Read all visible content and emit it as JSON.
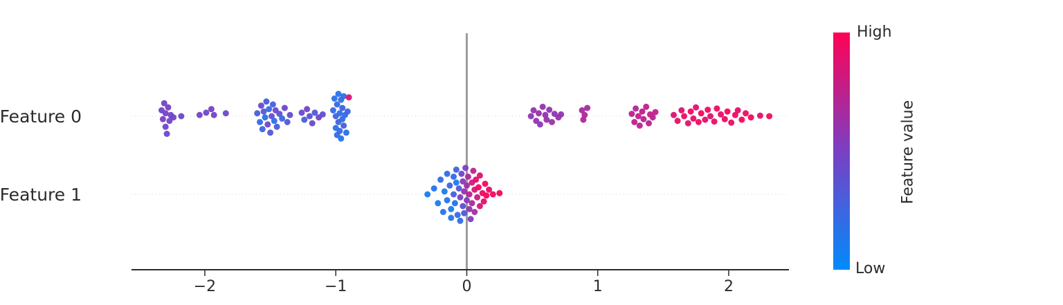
{
  "chart_data": {
    "type": "scatter",
    "variant": "shap-beeswarm-summary",
    "title": "",
    "xlabel": "",
    "xlim": [
      -2.56,
      2.46
    ],
    "xticks": {
      "values": [
        -2,
        -1,
        0,
        1,
        2
      ],
      "labels": [
        "−2",
        "−1",
        "0",
        "1",
        "2"
      ]
    },
    "zero_line_x": 0,
    "grid": "dotted-row-lines",
    "legend_position": "right-colorbar",
    "point_format": "[shap_value, vertical_jitter, normalized_feature_value_0_to_1]",
    "colorbar": {
      "high_label": "High",
      "low_label": "Low",
      "title": "Feature value"
    },
    "colors": {
      "low": "#008bfb",
      "mid": "#7b3fc4",
      "high": "#ff0254",
      "zero_line": "#9c9c9c",
      "axis": "#2b2b2b",
      "grid": "#d3d3d3",
      "text": "#2b2b2b"
    },
    "rows": [
      {
        "label": "Feature 0",
        "points": [
          [
            -2.33,
            0.1,
            0.46
          ],
          [
            -2.32,
            -0.05,
            0.5
          ],
          [
            -2.31,
            0.22,
            0.44
          ],
          [
            -2.3,
            0.05,
            0.48
          ],
          [
            -2.3,
            -0.18,
            0.46
          ],
          [
            -2.29,
            -0.3,
            0.44
          ],
          [
            -2.28,
            0.15,
            0.5
          ],
          [
            -2.27,
            -0.08,
            0.47
          ],
          [
            -2.26,
            0.02,
            0.45
          ],
          [
            -2.24,
            -0.02,
            0.49
          ],
          [
            -2.18,
            0.0,
            0.46
          ],
          [
            -2.04,
            0.02,
            0.47
          ],
          [
            -1.99,
            0.06,
            0.44
          ],
          [
            -1.95,
            0.12,
            0.5
          ],
          [
            -1.93,
            0.02,
            0.46
          ],
          [
            -1.84,
            0.05,
            0.44
          ],
          [
            -1.6,
            0.05,
            0.3
          ],
          [
            -1.58,
            -0.1,
            0.2
          ],
          [
            -1.57,
            0.18,
            0.42
          ],
          [
            -1.56,
            -0.22,
            0.25
          ],
          [
            -1.55,
            0.08,
            0.35
          ],
          [
            -1.54,
            -0.02,
            0.18
          ],
          [
            -1.53,
            0.25,
            0.3
          ],
          [
            -1.52,
            -0.14,
            0.45
          ],
          [
            -1.51,
            0.12,
            0.22
          ],
          [
            -1.5,
            -0.28,
            0.33
          ],
          [
            -1.49,
            0.0,
            0.4
          ],
          [
            -1.48,
            0.2,
            0.27
          ],
          [
            -1.47,
            -0.08,
            0.18
          ],
          [
            -1.46,
            0.1,
            0.45
          ],
          [
            -1.45,
            -0.18,
            0.3
          ],
          [
            -1.43,
            0.04,
            0.38
          ],
          [
            -1.41,
            -0.04,
            0.25
          ],
          [
            -1.39,
            0.14,
            0.44
          ],
          [
            -1.37,
            -0.1,
            0.35
          ],
          [
            -1.35,
            0.02,
            0.42
          ],
          [
            -1.26,
            0.06,
            0.42
          ],
          [
            -1.24,
            -0.06,
            0.3
          ],
          [
            -1.22,
            0.12,
            0.48
          ],
          [
            -1.2,
            0.0,
            0.38
          ],
          [
            -1.18,
            -0.12,
            0.44
          ],
          [
            -1.16,
            0.06,
            0.32
          ],
          [
            -1.13,
            -0.02,
            0.46
          ],
          [
            -1.1,
            0.03,
            0.4
          ],
          [
            -1.02,
            0.1,
            0.22
          ],
          [
            -1.01,
            0.3,
            0.18
          ],
          [
            -1.0,
            0.0,
            0.25
          ],
          [
            -1.0,
            -0.2,
            0.15
          ],
          [
            -0.99,
            0.2,
            0.2
          ],
          [
            -0.99,
            -0.32,
            0.22
          ],
          [
            -0.98,
            0.38,
            0.16
          ],
          [
            -0.98,
            -0.1,
            0.28
          ],
          [
            -0.97,
            0.05,
            0.18
          ],
          [
            -0.97,
            -0.25,
            0.24
          ],
          [
            -0.96,
            0.28,
            0.2
          ],
          [
            -0.96,
            -0.38,
            0.15
          ],
          [
            -0.95,
            0.14,
            0.26
          ],
          [
            -0.95,
            -0.05,
            0.2
          ],
          [
            -0.94,
            0.34,
            0.17
          ],
          [
            -0.94,
            -0.16,
            0.28
          ],
          [
            -0.93,
            0.02,
            0.22
          ],
          [
            -0.92,
            -0.28,
            0.18
          ],
          [
            -0.91,
            0.08,
            0.25
          ],
          [
            -0.9,
            0.32,
            0.85
          ],
          [
            0.49,
            0.0,
            0.56
          ],
          [
            0.51,
            0.1,
            0.6
          ],
          [
            0.53,
            -0.08,
            0.58
          ],
          [
            0.55,
            0.05,
            0.62
          ],
          [
            0.56,
            -0.14,
            0.56
          ],
          [
            0.58,
            0.16,
            0.6
          ],
          [
            0.6,
            0.02,
            0.58
          ],
          [
            0.61,
            -0.06,
            0.63
          ],
          [
            0.63,
            0.11,
            0.59
          ],
          [
            0.65,
            -0.1,
            0.61
          ],
          [
            0.67,
            0.04,
            0.57
          ],
          [
            0.7,
            -0.02,
            0.62
          ],
          [
            0.72,
            0.03,
            0.58
          ],
          [
            0.88,
            0.1,
            0.66
          ],
          [
            0.89,
            -0.06,
            0.7
          ],
          [
            0.9,
            0.02,
            0.68
          ],
          [
            0.92,
            0.14,
            0.65
          ],
          [
            1.26,
            0.04,
            0.72
          ],
          [
            1.28,
            -0.1,
            0.76
          ],
          [
            1.29,
            0.13,
            0.7
          ],
          [
            1.31,
            0.0,
            0.78
          ],
          [
            1.32,
            -0.16,
            0.73
          ],
          [
            1.34,
            0.08,
            0.75
          ],
          [
            1.35,
            -0.05,
            0.71
          ],
          [
            1.37,
            0.16,
            0.77
          ],
          [
            1.39,
            -0.12,
            0.74
          ],
          [
            1.4,
            0.03,
            0.79
          ],
          [
            1.42,
            -0.02,
            0.72
          ],
          [
            1.44,
            0.07,
            0.76
          ],
          [
            1.58,
            0.02,
            0.86
          ],
          [
            1.61,
            -0.08,
            0.9
          ],
          [
            1.64,
            0.1,
            0.88
          ],
          [
            1.66,
            0.0,
            0.92
          ],
          [
            1.69,
            -0.12,
            0.87
          ],
          [
            1.71,
            0.08,
            0.95
          ],
          [
            1.73,
            -0.04,
            0.9
          ],
          [
            1.75,
            0.15,
            0.88
          ],
          [
            1.77,
            -0.1,
            0.93
          ],
          [
            1.79,
            0.05,
            0.97
          ],
          [
            1.82,
            -0.06,
            0.9
          ],
          [
            1.84,
            0.11,
            0.95
          ],
          [
            1.86,
            0.0,
            0.88
          ],
          [
            1.89,
            -0.09,
            0.92
          ],
          [
            1.91,
            0.13,
            0.96
          ],
          [
            1.94,
            0.03,
            0.9
          ],
          [
            1.97,
            -0.05,
            0.94
          ],
          [
            1.99,
            0.08,
            0.98
          ],
          [
            2.02,
            -0.11,
            0.92
          ],
          [
            2.05,
            0.02,
            0.95
          ],
          [
            2.07,
            0.1,
            0.9
          ],
          [
            2.1,
            -0.06,
            0.97
          ],
          [
            2.13,
            0.05,
            0.93
          ],
          [
            2.17,
            -0.02,
            0.96
          ],
          [
            2.24,
            0.01,
            0.91
          ],
          [
            2.31,
            0.0,
            0.95
          ]
        ]
      },
      {
        "label": "Feature 1",
        "points": [
          [
            -0.3,
            0.0,
            0.1
          ],
          [
            -0.25,
            0.1,
            0.15
          ],
          [
            -0.22,
            -0.15,
            0.1
          ],
          [
            -0.2,
            0.25,
            0.2
          ],
          [
            -0.18,
            -0.3,
            0.15
          ],
          [
            -0.17,
            0.05,
            0.1
          ],
          [
            -0.15,
            0.35,
            0.2
          ],
          [
            -0.15,
            -0.1,
            0.15
          ],
          [
            -0.13,
            0.15,
            0.25
          ],
          [
            -0.12,
            -0.25,
            0.1
          ],
          [
            -0.12,
            -0.4,
            0.15
          ],
          [
            -0.1,
            0.3,
            0.2
          ],
          [
            -0.1,
            0.0,
            0.3
          ],
          [
            -0.09,
            -0.15,
            0.15
          ],
          [
            -0.08,
            0.42,
            0.25
          ],
          [
            -0.08,
            0.2,
            0.1
          ],
          [
            -0.07,
            -0.35,
            0.2
          ],
          [
            -0.06,
            0.1,
            0.35
          ],
          [
            -0.05,
            -0.05,
            0.5
          ],
          [
            -0.05,
            -0.45,
            0.2
          ],
          [
            -0.04,
            0.35,
            0.45
          ],
          [
            -0.03,
            0.22,
            0.55
          ],
          [
            -0.03,
            -0.2,
            0.4
          ],
          [
            -0.02,
            0.05,
            0.6
          ],
          [
            -0.02,
            -0.32,
            0.3
          ],
          [
            -0.01,
            0.45,
            0.5
          ],
          [
            0.0,
            0.15,
            0.65
          ],
          [
            0.0,
            -0.1,
            0.55
          ],
          [
            0.01,
            0.3,
            0.7
          ],
          [
            0.02,
            -0.25,
            0.6
          ],
          [
            0.02,
            0.0,
            0.75
          ],
          [
            0.03,
            -0.42,
            0.5
          ],
          [
            0.04,
            0.2,
            0.8
          ],
          [
            0.04,
            -0.15,
            0.7
          ],
          [
            0.05,
            0.4,
            0.75
          ],
          [
            0.06,
            0.08,
            0.85
          ],
          [
            0.06,
            -0.3,
            0.65
          ],
          [
            0.07,
            0.25,
            0.9
          ],
          [
            0.08,
            -0.05,
            0.8
          ],
          [
            0.09,
            0.12,
            0.95
          ],
          [
            0.1,
            -0.2,
            0.85
          ],
          [
            0.1,
            0.32,
            0.88
          ],
          [
            0.12,
            0.02,
            0.92
          ],
          [
            0.13,
            -0.12,
            0.9
          ],
          [
            0.14,
            0.18,
            0.95
          ],
          [
            0.15,
            -0.02,
            0.98
          ],
          [
            0.17,
            0.08,
            0.92
          ],
          [
            0.2,
            0.0,
            0.95
          ],
          [
            0.25,
            0.02,
            0.98
          ]
        ]
      }
    ]
  }
}
